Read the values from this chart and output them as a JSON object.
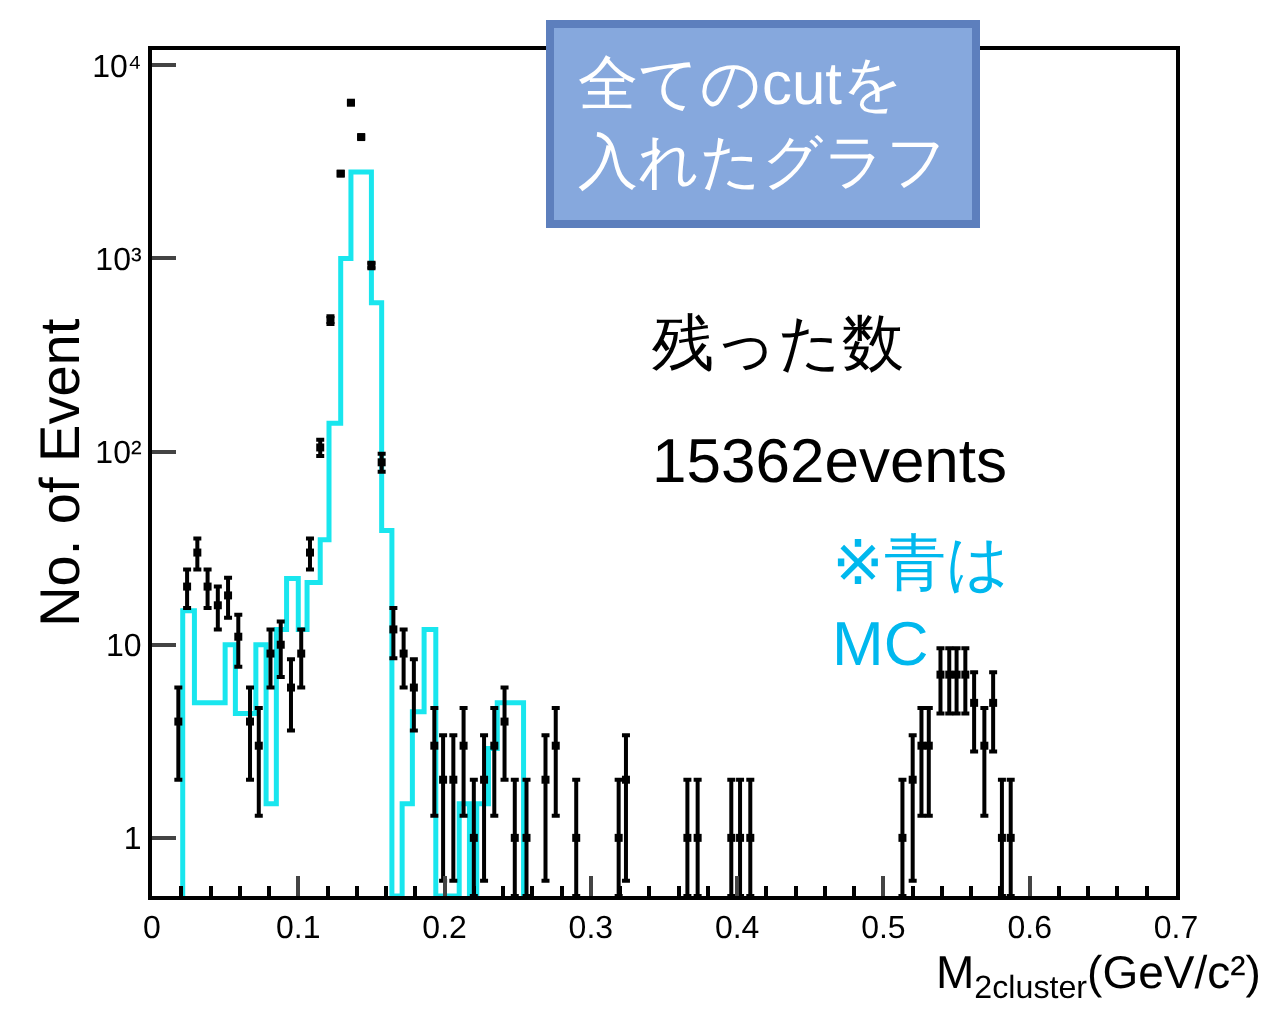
{
  "chart_data": {
    "type": "scatter",
    "xlabel": "M$_{2cluster}$(GeV/c²)",
    "ylabel": "No. of Event",
    "annotations": [
      "全てのcutを",
      "入れたグラフ",
      "残った数",
      "15362events",
      "※青は\nMC"
    ],
    "log": "y",
    "marker": "square",
    "line_style": "solid",
    "xlim": [
      0,
      0.7
    ],
    "xticks": [
      0,
      0.1,
      0.2,
      0.3,
      0.4,
      0.5,
      0.6,
      0.7
    ],
    "ylim": [
      0.5,
      12000
    ],
    "yticks": [
      1,
      10,
      {
        "value": 100,
        "label": "10²"
      },
      {
        "value": 1000,
        "label": "10³"
      },
      {
        "value": 10000,
        "label": "10⁴"
      }
    ],
    "series": [
      {
        "color": "#000000",
        "x": [
          0.018,
          0.024,
          0.031,
          0.038,
          0.045,
          0.052,
          0.059,
          0.067,
          0.073,
          0.081,
          0.088,
          0.095,
          0.102,
          0.108,
          0.115,
          0.122,
          0.129,
          0.136,
          0.143,
          0.15,
          0.157,
          0.165,
          0.172,
          0.179,
          0.193,
          0.199,
          0.206,
          0.213,
          0.22,
          0.227,
          0.234,
          0.241,
          0.248,
          0.256,
          0.269,
          0.276,
          0.29,
          0.319,
          0.324,
          0.366,
          0.373,
          0.396,
          0.402,
          0.409,
          0.513,
          0.52,
          0.526,
          0.531,
          0.539,
          0.545,
          0.55,
          0.556,
          0.562,
          0.569,
          0.575,
          0.581,
          0.587
        ],
        "values": [
          4,
          20,
          30,
          20,
          16,
          18,
          11,
          4,
          3,
          9,
          10,
          6,
          9,
          30,
          105,
          480,
          2750,
          6400,
          4250,
          920,
          88,
          12,
          9,
          6,
          3,
          2,
          2,
          3,
          1,
          2,
          3,
          4,
          1,
          1,
          2,
          3,
          1,
          1,
          2,
          1,
          1,
          1,
          1,
          1,
          1,
          2,
          3,
          3,
          7,
          7,
          7,
          7,
          5,
          3,
          5,
          1,
          1
        ],
        "errors": [
          2,
          4.5,
          5.5,
          4.5,
          4,
          4.2,
          3.3,
          2,
          1.7,
          3,
          3.2,
          2.4,
          3,
          5.5,
          10,
          22,
          52,
          80,
          65,
          30,
          9.4,
          3.5,
          3,
          2.4,
          1.7,
          1.4,
          1.4,
          1.7,
          [
            0.5,
            2
          ],
          1.4,
          1.7,
          2,
          [
            0.5,
            2
          ],
          [
            0.5,
            2
          ],
          1.4,
          1.7,
          [
            0.5,
            2
          ],
          [
            0.5,
            2
          ],
          1.4,
          [
            0.5,
            2
          ],
          [
            0.5,
            2
          ],
          [
            0.5,
            2
          ],
          [
            0.5,
            2
          ],
          [
            0.5,
            2
          ],
          [
            0.5,
            2
          ],
          1.4,
          1.7,
          1.7,
          2.6,
          2.6,
          2.6,
          2.6,
          2.2,
          1.7,
          2.2,
          [
            0.5,
            2
          ],
          [
            0.5,
            2
          ]
        ]
      },
      {
        "type": "histogram",
        "color": "#19e6ee",
        "bins": [
          0.021,
          0.029,
          0.05,
          0.057,
          0.071,
          0.078,
          0.085,
          0.092,
          0.1,
          0.106,
          0.115,
          0.121,
          0.129,
          0.136,
          0.15,
          0.157,
          0.164,
          0.171,
          0.178,
          0.186,
          0.194,
          0.21,
          0.217,
          0.222,
          0.23,
          0.236,
          0.254
        ],
        "values": [
          15,
          5,
          10,
          4.4,
          10,
          1.5,
          12,
          22,
          12,
          21,
          35,
          140,
          1000,
          2800,
          590,
          39,
          null,
          1.5,
          4.5,
          12,
          null,
          1.5,
          null,
          1.5,
          2.9,
          5
        ]
      }
    ]
  }
}
